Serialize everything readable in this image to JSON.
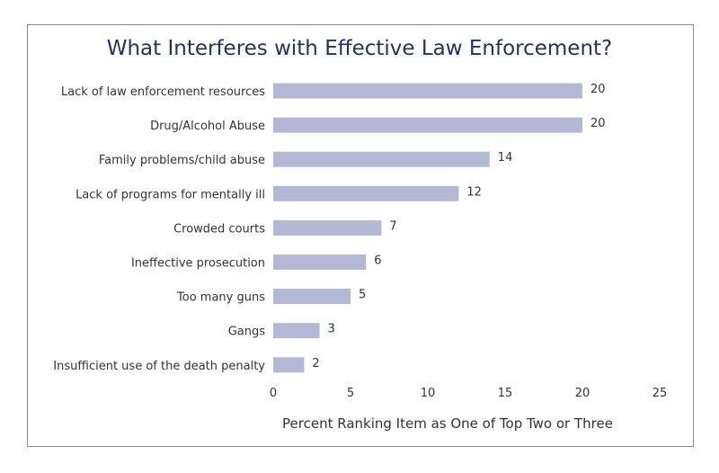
{
  "chart_data": {
    "type": "bar",
    "orientation": "horizontal",
    "title": "What Interferes with Effective Law Enforcement?",
    "xlabel": "Percent Ranking Item as One of Top Two or Three",
    "ylabel": "",
    "categories": [
      "Lack of law enforcement resources",
      "Drug/Alcohol Abuse",
      "Family problems/child abuse",
      "Lack of programs for mentally ill",
      "Crowded courts",
      "Ineffective prosecution",
      "Too many guns",
      "Gangs",
      "Insufficient use of the death penalty"
    ],
    "values": [
      20,
      20,
      14,
      12,
      7,
      6,
      5,
      3,
      2
    ],
    "xlim": [
      0,
      25
    ],
    "xticks": [
      0,
      5,
      10,
      15,
      20,
      25
    ],
    "grid": false,
    "legend": "none",
    "bar_color": "#b3b8d6",
    "title_color": "#1f3461"
  }
}
